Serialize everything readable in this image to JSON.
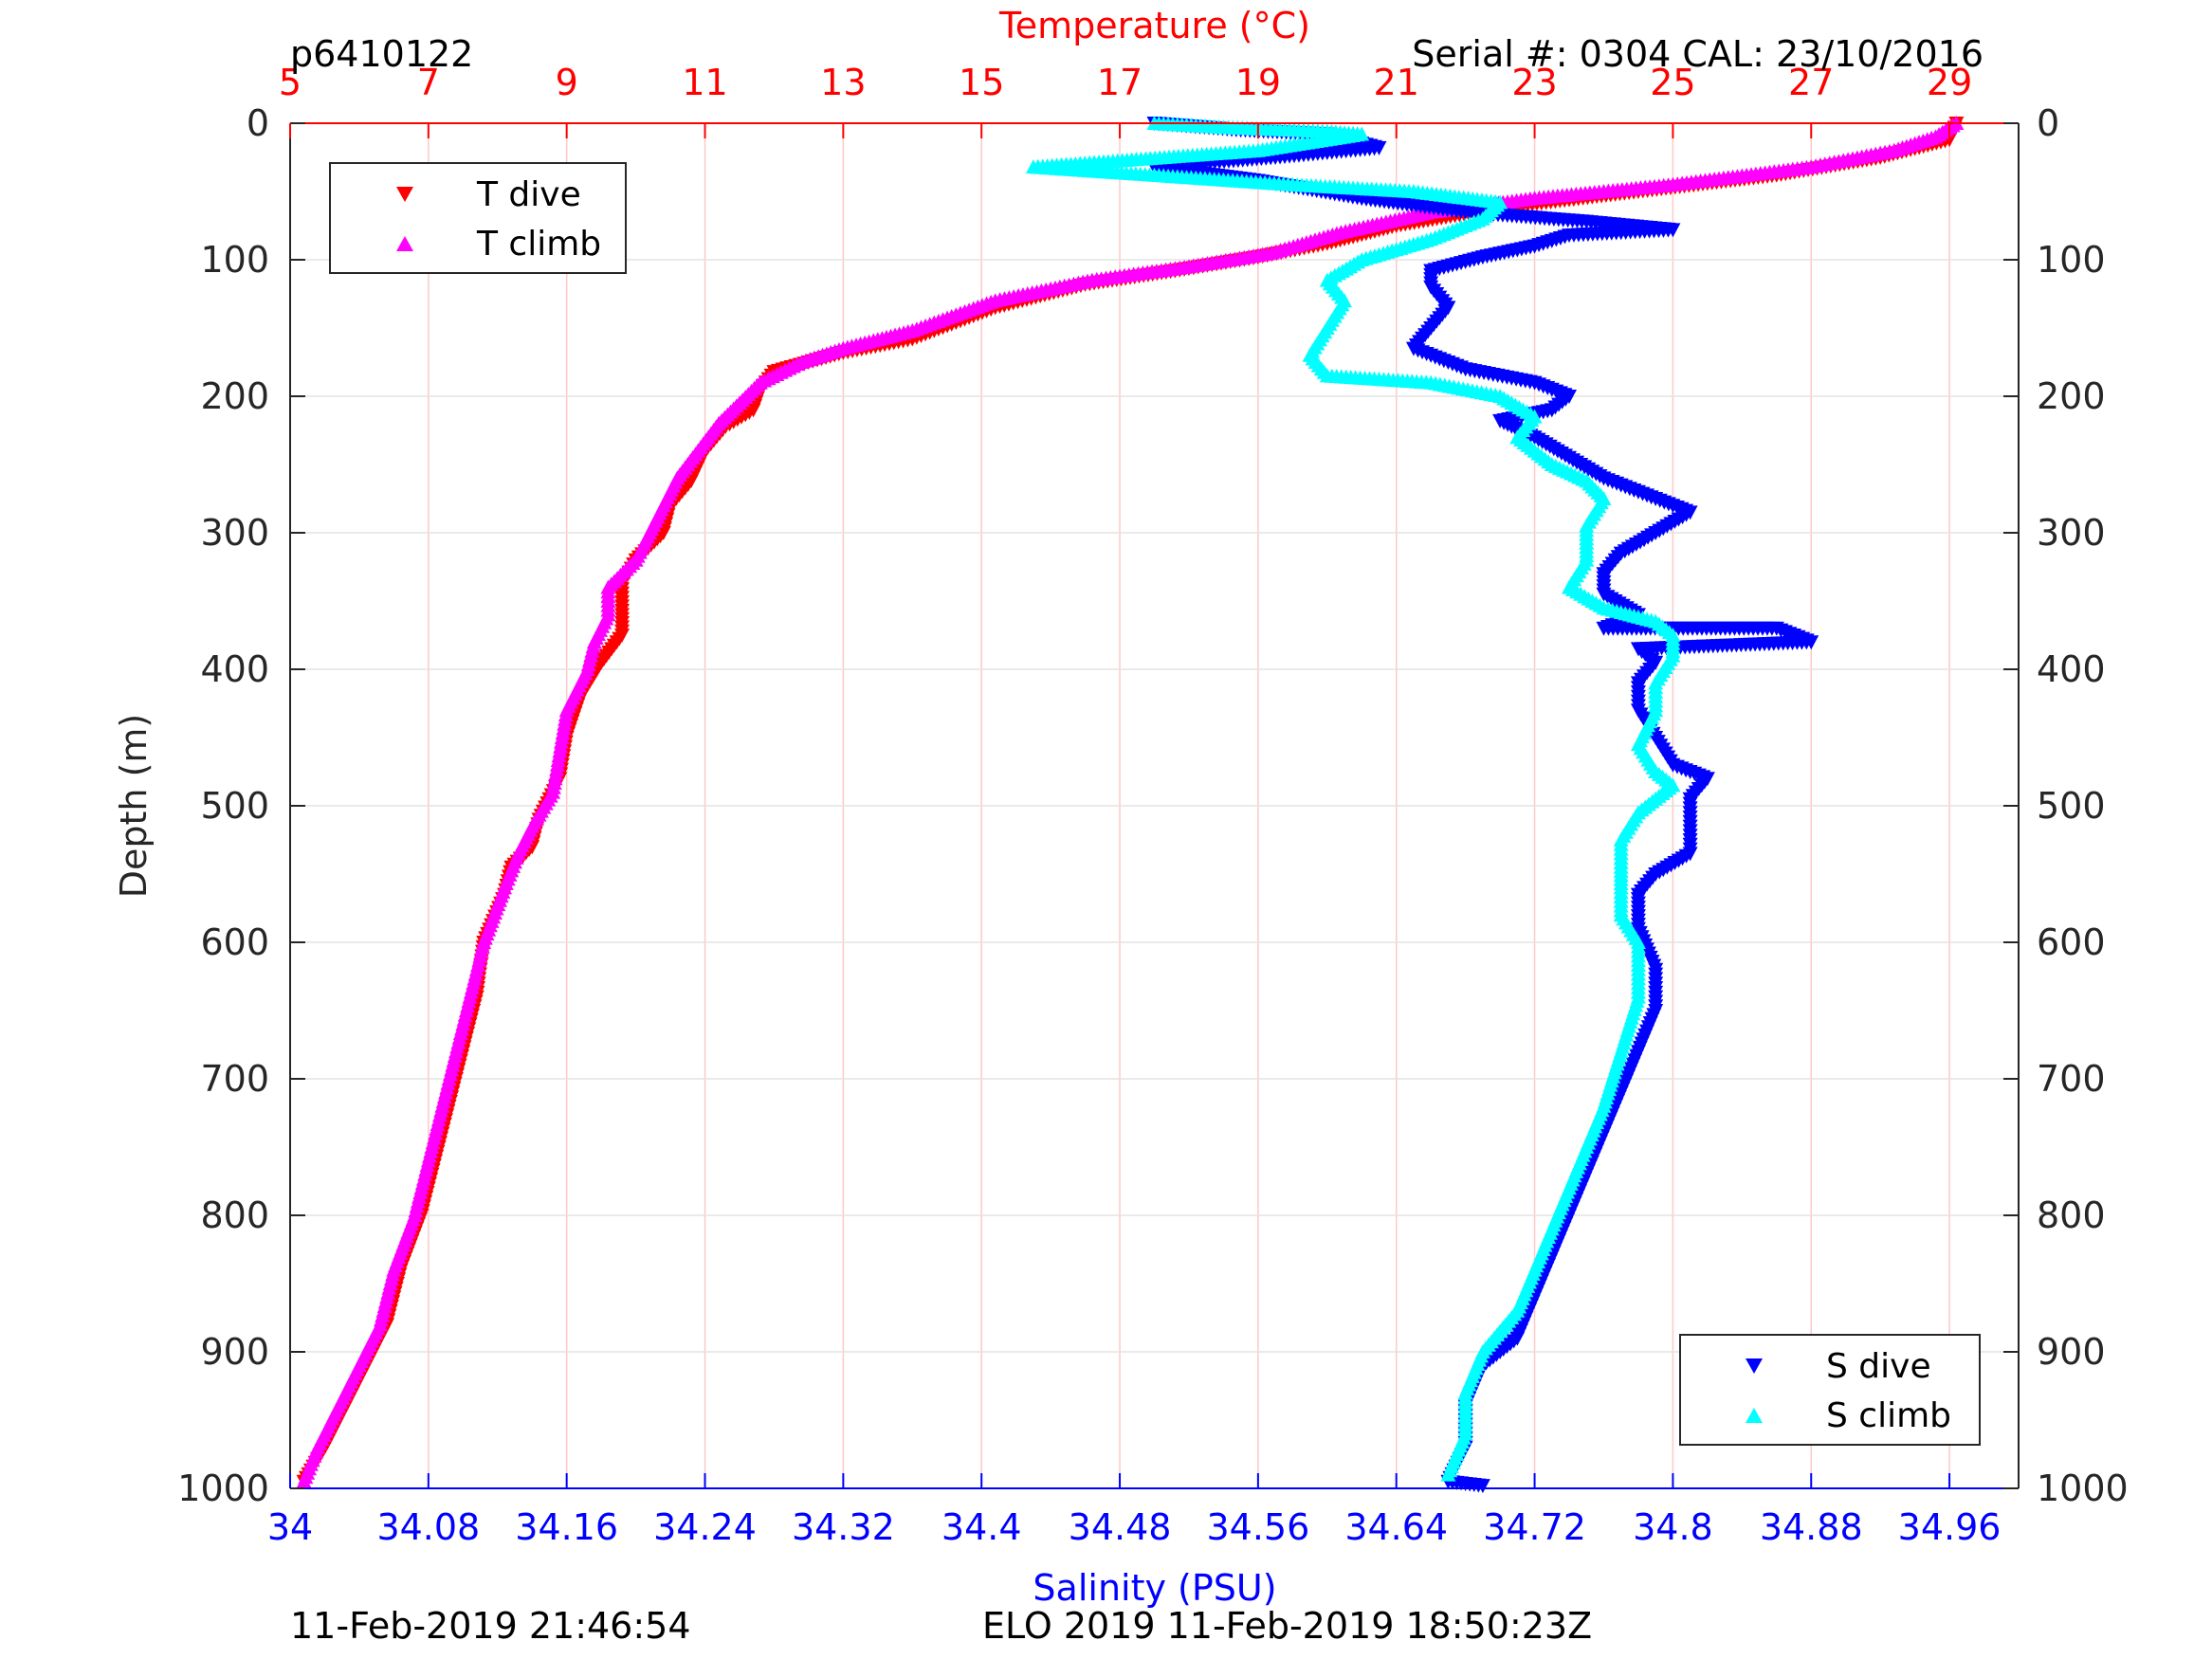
{
  "header": {
    "profile_id": "p6410122",
    "serial_cal": "Serial #: 0304  CAL: 23/10/2016"
  },
  "footer": {
    "timestamp": "11-Feb-2019 21:46:54",
    "mission": "ELO 2019 11-Feb-2019 18:50:23Z"
  },
  "colors": {
    "t_dive": "#ff0000",
    "t_climb": "#ff00ff",
    "s_dive": "#0000ff",
    "s_climb": "#00ffff",
    "temp_axis": "#ff0000",
    "sal_axis": "#0000ff",
    "depth_axis": "#262626"
  },
  "chart_data": {
    "type": "scatter",
    "ylabel": "Depth (m)",
    "ylim": [
      0,
      1000
    ],
    "y_reversed": true,
    "yticks": [
      "0",
      "100",
      "200",
      "300",
      "400",
      "500",
      "600",
      "700",
      "800",
      "900",
      "1000"
    ],
    "temperature_axis": {
      "label": "Temperature (°C)",
      "position": "top",
      "lim": [
        5,
        30
      ],
      "ticks": [
        "5",
        "7",
        "9",
        "11",
        "13",
        "15",
        "17",
        "19",
        "21",
        "23",
        "25",
        "27",
        "29"
      ],
      "grid": true
    },
    "salinity_axis": {
      "label": "Salinity (PSU)",
      "position": "bottom",
      "lim": [
        34,
        35
      ],
      "ticks": [
        "34",
        "34.08",
        "34.16",
        "34.24",
        "34.32",
        "34.4",
        "34.48",
        "34.56",
        "34.64",
        "34.72",
        "34.8",
        "34.88",
        "34.96"
      ],
      "grid": false
    },
    "legends": [
      {
        "placement": "top-left",
        "entries": [
          "T dive",
          "T climb"
        ]
      },
      {
        "placement": "bottom-right",
        "entries": [
          "S dive",
          "S climb"
        ]
      }
    ],
    "series": [
      {
        "name": "T dive",
        "axis": "temperature",
        "marker": "triangle-down",
        "points": [
          [
            29.1,
            0
          ],
          [
            29,
            12
          ],
          [
            28,
            25
          ],
          [
            26.5,
            38
          ],
          [
            24.5,
            50
          ],
          [
            22.5,
            62
          ],
          [
            21,
            75
          ],
          [
            20,
            88
          ],
          [
            19,
            98
          ],
          [
            17.8,
            108
          ],
          [
            16.5,
            118
          ],
          [
            15.2,
            135
          ],
          [
            14,
            158
          ],
          [
            13,
            168
          ],
          [
            12,
            182
          ],
          [
            11.8,
            195
          ],
          [
            11.7,
            210
          ],
          [
            11.3,
            222
          ],
          [
            11,
            240
          ],
          [
            10.8,
            262
          ],
          [
            10.5,
            280
          ],
          [
            10.4,
            300
          ],
          [
            10,
            320
          ],
          [
            9.8,
            338
          ],
          [
            9.8,
            360
          ],
          [
            9.8,
            375
          ],
          [
            9.5,
            395
          ],
          [
            9.2,
            420
          ],
          [
            9,
            450
          ],
          [
            8.9,
            480
          ],
          [
            8.6,
            510
          ],
          [
            8.5,
            530
          ],
          [
            8.2,
            545
          ],
          [
            8.1,
            565
          ],
          [
            7.8,
            600
          ],
          [
            7.7,
            640
          ],
          [
            7.5,
            680
          ],
          [
            7.3,
            720
          ],
          [
            7.1,
            760
          ],
          [
            6.9,
            800
          ],
          [
            6.6,
            840
          ],
          [
            6.4,
            880
          ],
          [
            6.1,
            910
          ],
          [
            5.8,
            940
          ],
          [
            5.5,
            970
          ],
          [
            5.2,
            995
          ]
        ]
      },
      {
        "name": "T climb",
        "axis": "temperature",
        "marker": "triangle-up",
        "points": [
          [
            29.1,
            0
          ],
          [
            28.8,
            10
          ],
          [
            28.2,
            20
          ],
          [
            27,
            32
          ],
          [
            25,
            45
          ],
          [
            23,
            55
          ],
          [
            21.5,
            65
          ],
          [
            20.2,
            80
          ],
          [
            19.2,
            95
          ],
          [
            18,
            105
          ],
          [
            16.6,
            115
          ],
          [
            15.2,
            130
          ],
          [
            14,
            152
          ],
          [
            13,
            165
          ],
          [
            12.4,
            175
          ],
          [
            11.8,
            190
          ],
          [
            11.5,
            205
          ],
          [
            11.2,
            220
          ],
          [
            10.9,
            240
          ],
          [
            10.6,
            260
          ],
          [
            10.4,
            280
          ],
          [
            10.2,
            300
          ],
          [
            10,
            320
          ],
          [
            9.6,
            340
          ],
          [
            9.6,
            360
          ],
          [
            9.4,
            380
          ],
          [
            9.3,
            400
          ],
          [
            9,
            430
          ],
          [
            8.9,
            460
          ],
          [
            8.8,
            490
          ],
          [
            8.5,
            515
          ],
          [
            8.3,
            535
          ],
          [
            8.1,
            560
          ],
          [
            7.8,
            600
          ],
          [
            7.6,
            640
          ],
          [
            7.4,
            680
          ],
          [
            7.2,
            720
          ],
          [
            7,
            760
          ],
          [
            6.8,
            800
          ],
          [
            6.5,
            840
          ],
          [
            6.3,
            880
          ],
          [
            6,
            910
          ],
          [
            5.7,
            940
          ],
          [
            5.4,
            970
          ],
          [
            5.2,
            995
          ]
        ]
      },
      {
        "name": "S dive",
        "axis": "salinity",
        "marker": "triangle-down",
        "points": [
          [
            34.5,
            0
          ],
          [
            34.55,
            5
          ],
          [
            34.6,
            8
          ],
          [
            34.63,
            18
          ],
          [
            34.57,
            25
          ],
          [
            34.5,
            32
          ],
          [
            34.56,
            42
          ],
          [
            34.62,
            55
          ],
          [
            34.68,
            65
          ],
          [
            34.75,
            72
          ],
          [
            34.8,
            78
          ],
          [
            34.74,
            82
          ],
          [
            34.72,
            90
          ],
          [
            34.69,
            98
          ],
          [
            34.66,
            108
          ],
          [
            34.66,
            120
          ],
          [
            34.67,
            135
          ],
          [
            34.66,
            150
          ],
          [
            34.65,
            165
          ],
          [
            34.68,
            180
          ],
          [
            34.72,
            190
          ],
          [
            34.74,
            200
          ],
          [
            34.73,
            210
          ],
          [
            34.7,
            218
          ],
          [
            34.72,
            230
          ],
          [
            34.74,
            245
          ],
          [
            34.76,
            260
          ],
          [
            34.78,
            270
          ],
          [
            34.81,
            285
          ],
          [
            34.79,
            300
          ],
          [
            34.77,
            315
          ],
          [
            34.76,
            330
          ],
          [
            34.76,
            345
          ],
          [
            34.78,
            360
          ],
          [
            34.76,
            370
          ],
          [
            34.86,
            370
          ],
          [
            34.88,
            380
          ],
          [
            34.78,
            385
          ],
          [
            34.79,
            395
          ],
          [
            34.78,
            410
          ],
          [
            34.78,
            430
          ],
          [
            34.79,
            450
          ],
          [
            34.8,
            470
          ],
          [
            34.82,
            480
          ],
          [
            34.81,
            495
          ],
          [
            34.81,
            515
          ],
          [
            34.81,
            535
          ],
          [
            34.79,
            550
          ],
          [
            34.78,
            565
          ],
          [
            34.78,
            590
          ],
          [
            34.79,
            620
          ],
          [
            34.79,
            650
          ],
          [
            34.78,
            680
          ],
          [
            34.77,
            710
          ],
          [
            34.76,
            740
          ],
          [
            34.75,
            770
          ],
          [
            34.74,
            800
          ],
          [
            34.73,
            830
          ],
          [
            34.72,
            860
          ],
          [
            34.71,
            890
          ],
          [
            34.69,
            910
          ],
          [
            34.68,
            940
          ],
          [
            34.68,
            970
          ],
          [
            34.67,
            995
          ],
          [
            34.69,
            998
          ]
        ]
      },
      {
        "name": "S climb",
        "axis": "salinity",
        "marker": "triangle-up",
        "points": [
          [
            34.5,
            0
          ],
          [
            34.54,
            3
          ],
          [
            34.6,
            6
          ],
          [
            34.62,
            8
          ],
          [
            34.56,
            20
          ],
          [
            34.43,
            32
          ],
          [
            34.5,
            38
          ],
          [
            34.58,
            45
          ],
          [
            34.65,
            50
          ],
          [
            34.7,
            58
          ],
          [
            34.69,
            70
          ],
          [
            34.66,
            85
          ],
          [
            34.62,
            100
          ],
          [
            34.6,
            115
          ],
          [
            34.61,
            130
          ],
          [
            34.6,
            150
          ],
          [
            34.59,
            170
          ],
          [
            34.6,
            185
          ],
          [
            34.66,
            190
          ],
          [
            34.7,
            200
          ],
          [
            34.72,
            215
          ],
          [
            34.71,
            230
          ],
          [
            34.73,
            250
          ],
          [
            34.75,
            262
          ],
          [
            34.76,
            275
          ],
          [
            34.75,
            295
          ],
          [
            34.75,
            320
          ],
          [
            34.74,
            340
          ],
          [
            34.76,
            355
          ],
          [
            34.79,
            365
          ],
          [
            34.8,
            375
          ],
          [
            34.8,
            390
          ],
          [
            34.79,
            410
          ],
          [
            34.79,
            430
          ],
          [
            34.78,
            455
          ],
          [
            34.79,
            475
          ],
          [
            34.8,
            485
          ],
          [
            34.78,
            505
          ],
          [
            34.77,
            525
          ],
          [
            34.77,
            545
          ],
          [
            34.77,
            560
          ],
          [
            34.77,
            580
          ],
          [
            34.78,
            600
          ],
          [
            34.78,
            640
          ],
          [
            34.77,
            680
          ],
          [
            34.76,
            720
          ],
          [
            34.75,
            750
          ],
          [
            34.74,
            780
          ],
          [
            34.73,
            810
          ],
          [
            34.72,
            840
          ],
          [
            34.71,
            870
          ],
          [
            34.69,
            900
          ],
          [
            34.68,
            930
          ],
          [
            34.68,
            960
          ],
          [
            34.67,
            990
          ]
        ]
      }
    ]
  }
}
